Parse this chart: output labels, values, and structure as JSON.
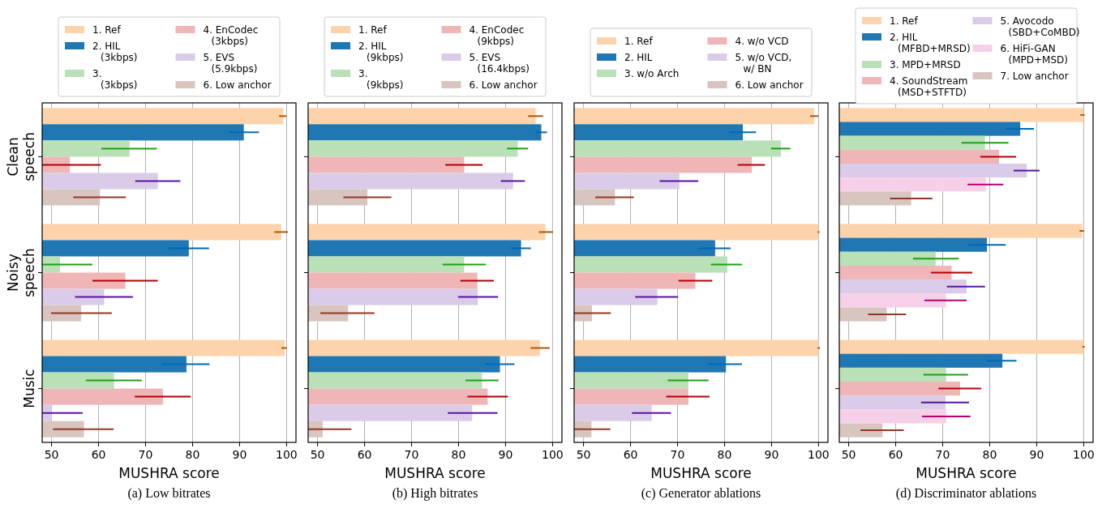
{
  "chart_data": [
    {
      "type": "bar",
      "orientation": "horizontal",
      "title": "(a) Low bitrates",
      "xlabel": "MUSHRA score",
      "categories": [
        "Clean speech",
        "Noisy speech",
        "Music"
      ],
      "xlim": [
        48,
        102
      ],
      "xticks": [
        50,
        60,
        70,
        80,
        90,
        100
      ],
      "grid": "x",
      "legend": "top",
      "series": [
        {
          "name": "1. Ref",
          "color": "#fdd3ab",
          "values": [
            99.3,
            98.9,
            99.6
          ],
          "errors": [
            [
              98.4,
              100.0
            ],
            [
              97.4,
              100.3
            ],
            [
              98.9,
              100.1
            ]
          ]
        },
        {
          "name": "2. HIL (3kbps)",
          "color": "#1f77b4",
          "values": [
            90.9,
            79.2,
            78.7
          ],
          "errors": [
            [
              87.8,
              94.1
            ],
            [
              74.9,
              83.5
            ],
            [
              73.5,
              83.6
            ]
          ]
        },
        {
          "name": "3. (3kbps)",
          "color": "#b9e0b6",
          "values": [
            66.6,
            51.8,
            63.3
          ],
          "errors": [
            [
              60.6,
              72.4
            ],
            [
              48,
              58.7
            ],
            [
              57.3,
              69.2
            ]
          ]
        },
        {
          "name": "4. EnCodec (3kbps)",
          "color": "#f0b5b7",
          "values": [
            53.9,
            65.7,
            73.7
          ],
          "errors": [
            [
              48,
              60.5
            ],
            [
              58.7,
              72.6
            ],
            [
              67.7,
              79.6
            ]
          ]
        },
        {
          "name": "5. EVS (5.9kbps)",
          "color": "#dacce8",
          "values": [
            72.6,
            61.2,
            50.0
          ],
          "errors": [
            [
              67.8,
              77.4
            ],
            [
              55.0,
              67.3
            ],
            [
              48,
              56.6
            ]
          ]
        },
        {
          "name": "6. Low anchor",
          "color": "#d9c5c0",
          "values": [
            60.3,
            56.3,
            56.9
          ],
          "errors": [
            [
              54.6,
              65.8
            ],
            [
              49.9,
              62.8
            ],
            [
              50.3,
              63.2
            ]
          ]
        }
      ]
    },
    {
      "type": "bar",
      "orientation": "horizontal",
      "title": "(b) High bitrates",
      "xlabel": "MUSHRA score",
      "categories": [
        null,
        null,
        null
      ],
      "tick_labels": "x",
      "xlim": [
        48,
        102
      ],
      "xticks": [
        50,
        60,
        70,
        80,
        90,
        100
      ],
      "grid": "x",
      "legend": "top",
      "series": [
        {
          "name": "1. Ref",
          "color": "#fdd3ab",
          "values": [
            96.4,
            98.5,
            97.3
          ],
          "errors": [
            [
              94.8,
              98.0
            ],
            [
              97.1,
              100.1
            ],
            [
              95.3,
              99.4
            ]
          ]
        },
        {
          "name": "2. HIL (9kbps)",
          "color": "#1f77b4",
          "values": [
            97.6,
            93.3,
            88.8
          ],
          "errors": [
            [
              96.4,
              98.8
            ],
            [
              91.2,
              95.4
            ],
            [
              85.7,
              91.9
            ]
          ]
        },
        {
          "name": "3. (9kbps)",
          "color": "#b9e0b6",
          "values": [
            92.6,
            81.2,
            85.0
          ],
          "errors": [
            [
              90.3,
              94.8
            ],
            [
              76.6,
              85.8
            ],
            [
              81.5,
              88.5
            ]
          ]
        },
        {
          "name": "4. EnCodec (9kbps)",
          "color": "#f0b5b7",
          "values": [
            81.2,
            84.0,
            86.2
          ],
          "errors": [
            [
              77.2,
              85.1
            ],
            [
              80.4,
              87.5
            ],
            [
              81.9,
              90.5
            ]
          ]
        },
        {
          "name": "5. EVS (16.4kbps)",
          "color": "#dacce8",
          "values": [
            91.6,
            84.1,
            82.9
          ],
          "errors": [
            [
              89.0,
              94.1
            ],
            [
              79.9,
              88.4
            ],
            [
              77.7,
              88.3
            ]
          ]
        },
        {
          "name": "6. Low anchor",
          "color": "#d9c5c0",
          "values": [
            60.6,
            56.5,
            51.1
          ],
          "errors": [
            [
              55.5,
              65.7
            ],
            [
              50.6,
              62.1
            ],
            [
              48,
              57.2
            ]
          ]
        }
      ]
    },
    {
      "type": "bar",
      "orientation": "horizontal",
      "title": "(c) Generator ablations",
      "xlabel": "MUSHRA score",
      "categories": [
        null,
        null,
        null
      ],
      "tick_labels": "x",
      "xlim": [
        48,
        102
      ],
      "xticks": [
        50,
        60,
        70,
        80,
        90,
        100
      ],
      "grid": "x",
      "legend": "top",
      "series": [
        {
          "name": "1. Ref",
          "color": "#fdd3ab",
          "values": [
            99.1,
            100.0,
            100.0
          ],
          "errors": [
            [
              98.2,
              100.0
            ],
            [
              99.8,
              100.2
            ],
            [
              99.8,
              100.3
            ]
          ]
        },
        {
          "name": "2. HIL",
          "color": "#1f77b4",
          "values": [
            83.9,
            78.0,
            80.3
          ],
          "errors": [
            [
              81.1,
              86.7
            ],
            [
              74.5,
              81.3
            ],
            [
              76.6,
              83.7
            ]
          ]
        },
        {
          "name": "3. w/o Arch",
          "color": "#b9e0b6",
          "values": [
            92.0,
            80.6,
            72.3
          ],
          "errors": [
            [
              89.9,
              94.0
            ],
            [
              77.1,
              83.7
            ],
            [
              67.9,
              76.6
            ]
          ]
        },
        {
          "name": "4. w/o VCD",
          "color": "#f0b5b7",
          "values": [
            85.8,
            73.8,
            72.3
          ],
          "errors": [
            [
              82.8,
              88.6
            ],
            [
              70.2,
              77.4
            ],
            [
              67.6,
              76.8
            ]
          ]
        },
        {
          "name": "5. w/o VCD, w/ BN",
          "color": "#dacce8",
          "values": [
            70.4,
            65.7,
            64.5
          ],
          "errors": [
            [
              66.2,
              74.4
            ],
            [
              61.0,
              70.1
            ],
            [
              60.3,
              68.6
            ]
          ]
        },
        {
          "name": "6. Low anchor",
          "color": "#d9c5c0",
          "values": [
            56.7,
            51.8,
            51.7
          ],
          "errors": [
            [
              52.5,
              60.7
            ],
            [
              48,
              55.8
            ],
            [
              48,
              55.7
            ]
          ]
        }
      ]
    },
    {
      "type": "bar",
      "orientation": "horizontal",
      "title": "(d) Discriminator ablations",
      "xlabel": "MUSHRA score",
      "categories": [
        null,
        null,
        null
      ],
      "tick_labels": "x",
      "xlim": [
        48,
        102
      ],
      "xticks": [
        50,
        60,
        70,
        80,
        90,
        100
      ],
      "grid": "x",
      "legend": "top",
      "series": [
        {
          "name": "1. Ref",
          "color": "#fdd3ab",
          "values": [
            99.9,
            99.7,
            100.0
          ],
          "errors": [
            [
              99.3,
              100.2
            ],
            [
              99.1,
              100.1
            ],
            [
              99.7,
              100.2
            ]
          ]
        },
        {
          "name": "2. HIL (MFBD+MRSD)",
          "color": "#1f77b4",
          "values": [
            86.5,
            79.4,
            82.7
          ],
          "errors": [
            [
              83.4,
              89.4
            ],
            [
              75.5,
              83.4
            ],
            [
              79.4,
              85.7
            ]
          ]
        },
        {
          "name": "3. MPD+MRSD",
          "color": "#b9e0b6",
          "values": [
            79.0,
            68.5,
            70.7
          ],
          "errors": [
            [
              74.0,
              84.0
            ],
            [
              63.7,
              73.4
            ],
            [
              65.9,
              75.4
            ]
          ]
        },
        {
          "name": "4. SoundStream (MSD+STFTD)",
          "color": "#f0b5b7",
          "values": [
            82.0,
            71.9,
            73.7
          ],
          "errors": [
            [
              78.0,
              85.6
            ],
            [
              67.5,
              76.3
            ],
            [
              69.1,
              78.2
            ]
          ]
        },
        {
          "name": "5. Avocodo (SBD+CoMBD)",
          "color": "#dacce8",
          "values": [
            87.9,
            75.1,
            70.6
          ],
          "errors": [
            [
              85.1,
              90.6
            ],
            [
              70.9,
              79.0
            ],
            [
              65.4,
              75.6
            ]
          ]
        },
        {
          "name": "6. HiFi-GAN (MPD+MSD)",
          "color": "#f5d0e8",
          "values": [
            79.2,
            70.7,
            70.7
          ],
          "errors": [
            [
              75.3,
              82.9
            ],
            [
              66.1,
              75.1
            ],
            [
              65.6,
              75.9
            ]
          ]
        },
        {
          "name": "7. Low anchor",
          "color": "#d9c5c0",
          "values": [
            63.3,
            58.1,
            57.2
          ],
          "errors": [
            [
              58.8,
              67.8
            ],
            [
              54.1,
              62.2
            ],
            [
              52.5,
              61.7
            ]
          ]
        }
      ]
    }
  ]
}
